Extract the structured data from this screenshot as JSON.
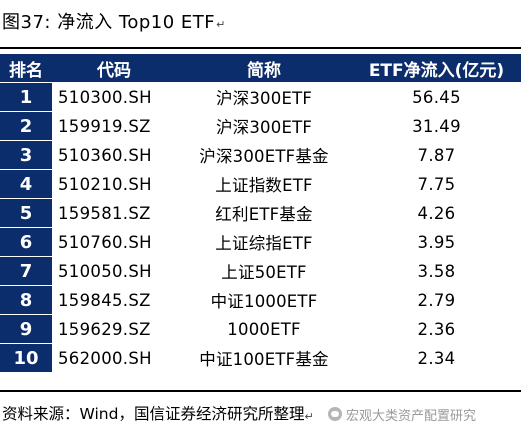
{
  "figure": {
    "title": "图37: 净流入 Top10 ETF",
    "paragraph_mark": "↵"
  },
  "table": {
    "headers": [
      "排名",
      "代码",
      "简称",
      "ETF净流入(亿元)"
    ],
    "rows": [
      {
        "rank": "1",
        "code": "510300.SH",
        "name": "沪深300ETF",
        "flow": "56.45"
      },
      {
        "rank": "2",
        "code": "159919.SZ",
        "name": "沪深300ETF",
        "flow": "31.49"
      },
      {
        "rank": "3",
        "code": "510360.SH",
        "name": "沪深300ETF基金",
        "flow": "7.87"
      },
      {
        "rank": "4",
        "code": "510210.SH",
        "name": "上证指数ETF",
        "flow": "7.75"
      },
      {
        "rank": "5",
        "code": "159581.SZ",
        "name": "红利ETF基金",
        "flow": "4.26"
      },
      {
        "rank": "6",
        "code": "510760.SH",
        "name": "上证综指ETF",
        "flow": "3.95"
      },
      {
        "rank": "7",
        "code": "510050.SH",
        "name": "上证50ETF",
        "flow": "3.58"
      },
      {
        "rank": "8",
        "code": "159845.SZ",
        "name": "中证1000ETF",
        "flow": "2.79"
      },
      {
        "rank": "9",
        "code": "159629.SZ",
        "name": "1000ETF",
        "flow": "2.36"
      },
      {
        "rank": "10",
        "code": "562000.SH",
        "name": "中证100ETF基金",
        "flow": "2.34"
      }
    ]
  },
  "source": {
    "text": "资料来源：Wind，国信证券经济研究所整理",
    "paragraph_mark": "↵"
  },
  "watermark": {
    "text": "宏观大类资产配置研究",
    "icon": "wechat-icon"
  },
  "colors": {
    "header_bg": "#0c2d6b",
    "header_text": "#ffffff"
  }
}
